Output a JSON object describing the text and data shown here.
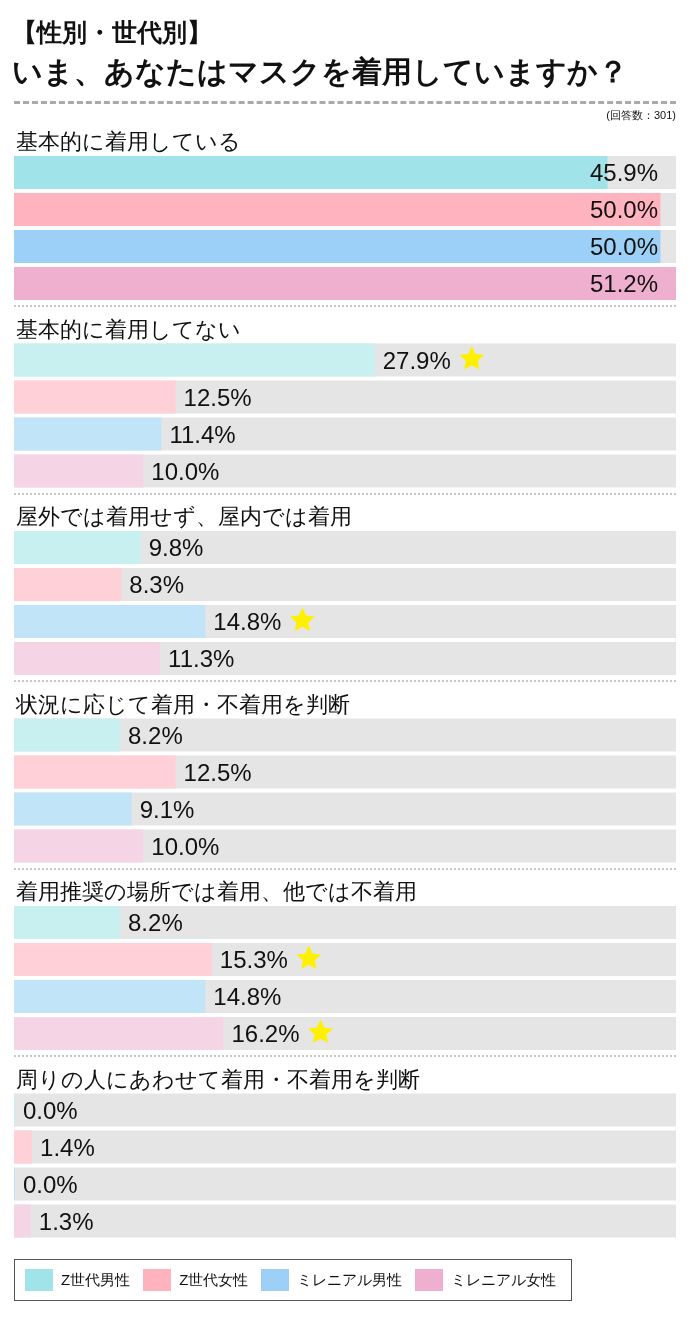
{
  "chart_data": {
    "type": "bar",
    "orientation": "horizontal",
    "subtitle": "【性別・世代別】",
    "title": "いま、あなたはマスクを着用していますか？",
    "annotations": [
      "(回答数：301)"
    ],
    "categories": [
      "基本的に着用している",
      "基本的に着用してない",
      "屋外では着用せず、屋内では着用",
      "状況に応じて着用・不着用を判断",
      "着用推奨の場所では着用、他では不着用",
      "周りの人にあわせて着用・不着用を判断"
    ],
    "series": [
      {
        "name": "Z世代男性",
        "color": "#a0e3e8",
        "colors": [
          "#a0e3e8",
          "#c9f0f0",
          "#c9f0f0",
          "#c9f0f0",
          "#c9f0f0",
          "#c9f0f0"
        ],
        "values": [
          45.9,
          27.9,
          9.8,
          8.2,
          8.2,
          0.0
        ],
        "value_labels": [
          "45.9%",
          "27.9%",
          "9.8%",
          "8.2%",
          "8.2%",
          "0.0%"
        ]
      },
      {
        "name": "Z世代女性",
        "color": "#ffb3bf",
        "colors": [
          "#ffb3bf",
          "#ffd0d8",
          "#ffd0d8",
          "#ffd0d8",
          "#ffd0d8",
          "#ffd0d8"
        ],
        "values": [
          50.0,
          12.5,
          8.3,
          12.5,
          15.3,
          1.4
        ],
        "value_labels": [
          "50.0%",
          "12.5%",
          "8.3%",
          "12.5%",
          "15.3%",
          "1.4%"
        ]
      },
      {
        "name": "ミレニアル男性",
        "color": "#9dd0f7",
        "colors": [
          "#9dd0f7",
          "#c2e4f8",
          "#c2e4f8",
          "#c2e4f8",
          "#c2e4f8",
          "#c2e4f8"
        ],
        "values": [
          50.0,
          11.4,
          14.8,
          9.1,
          14.8,
          0.0
        ],
        "value_labels": [
          "50.0%",
          "11.4%",
          "14.8%",
          "9.1%",
          "14.8%",
          "0.0%"
        ]
      },
      {
        "name": "ミレニアル女性",
        "color": "#efb0d0",
        "colors": [
          "#efb0d0",
          "#f5d5e5",
          "#f5d5e5",
          "#f5d5e5",
          "#f5d5e5",
          "#f5d5e5"
        ],
        "values": [
          51.2,
          10.0,
          11.3,
          10.0,
          16.2,
          1.3
        ],
        "value_labels": [
          "51.2%",
          "10.0%",
          "11.3%",
          "10.0%",
          "16.2%",
          "1.3%"
        ]
      }
    ],
    "legend": "bottom left",
    "tick_labels": "y"
  }
}
